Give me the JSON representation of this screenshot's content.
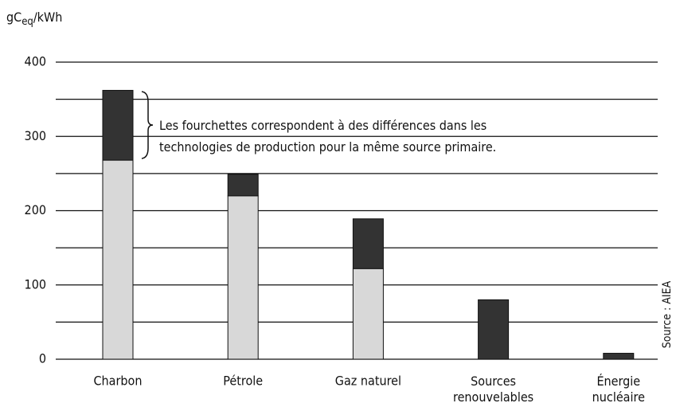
{
  "chart_data": {
    "type": "stacked_bar",
    "ylabel": [
      "gC",
      "eq",
      "/kWh"
    ],
    "categories": [
      "Charbon",
      "Pétrole",
      "Gaz naturel",
      "Sources\nrenouvelables",
      "Énergie\nnucléaire"
    ],
    "series": [
      {
        "name": null,
        "color": "#d8d8d8",
        "values": [
          268,
          220,
          122,
          0,
          0
        ]
      },
      {
        "name": null,
        "color": "#333333",
        "values": [
          94,
          29,
          67,
          80,
          8
        ]
      }
    ],
    "ylim": [
      0,
      400
    ],
    "yticks": [
      0,
      100,
      200,
      300,
      400
    ],
    "minor_grid": [
      50,
      150,
      250,
      350
    ],
    "grid": true,
    "annotation": "Les fourchettes correspondent à des différences dans les\ntechnologies de production pour la même source primaire.",
    "source": "Source : AIEA"
  }
}
